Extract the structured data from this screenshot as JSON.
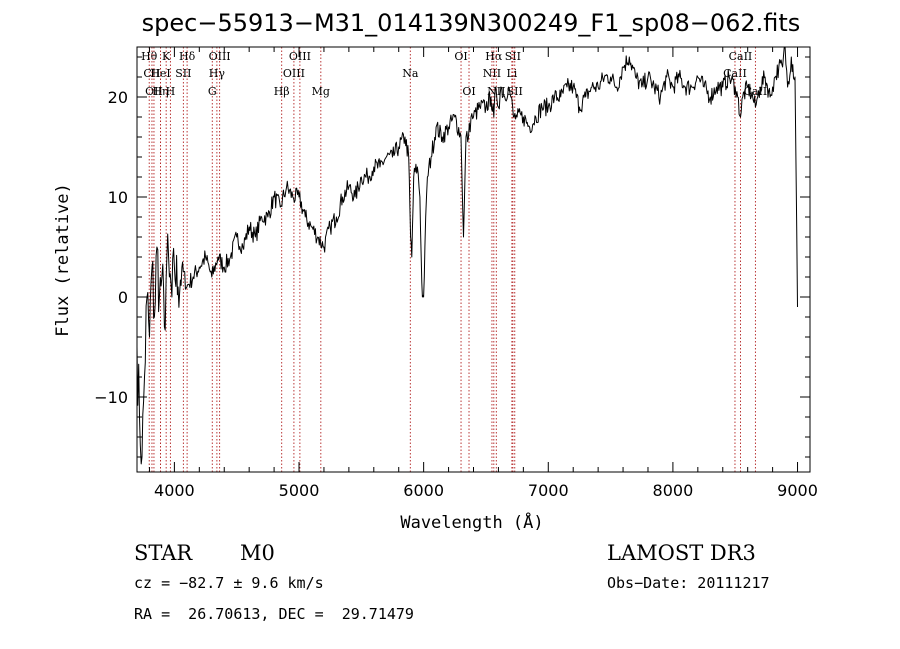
{
  "chart_data": {
    "type": "line",
    "title": "spec−55913−M31_014139N300249_F1_sp08−062.fits",
    "xlabel": "Wavelength (Å)",
    "ylabel": "Flux (relative)",
    "xlim": [
      3700,
      9100
    ],
    "ylim": [
      -17.5,
      25
    ],
    "xticks": [
      {
        "value": 4000,
        "label": "4000"
      },
      {
        "value": 5000,
        "label": "5000"
      },
      {
        "value": 6000,
        "label": "6000"
      },
      {
        "value": 7000,
        "label": "7000"
      },
      {
        "value": 8000,
        "label": "8000"
      },
      {
        "value": 9000,
        "label": "9000"
      }
    ],
    "yticks": [
      {
        "value": -10,
        "label": "−10"
      },
      {
        "value": 0,
        "label": "0"
      },
      {
        "value": 10,
        "label": "10"
      },
      {
        "value": 20,
        "label": "20"
      }
    ],
    "series": [
      {
        "name": "flux",
        "color": "#000000",
        "x": [
          3700,
          3720,
          3740,
          3760,
          3780,
          3800,
          3820,
          3840,
          3860,
          3880,
          3900,
          3920,
          3940,
          3960,
          3980,
          4000,
          4030,
          4060,
          4100,
          4150,
          4200,
          4250,
          4300,
          4350,
          4400,
          4450,
          4500,
          4550,
          4600,
          4650,
          4700,
          4750,
          4800,
          4850,
          4900,
          4950,
          5000,
          5050,
          5100,
          5150,
          5200,
          5250,
          5300,
          5350,
          5400,
          5450,
          5500,
          5550,
          5600,
          5650,
          5700,
          5750,
          5800,
          5850,
          5880,
          5895,
          5905,
          5920,
          5950,
          5970,
          5980,
          5990,
          6000,
          6010,
          6030,
          6060,
          6100,
          6150,
          6200,
          6250,
          6300,
          6320,
          6340,
          6360,
          6380,
          6400,
          6450,
          6500,
          6540,
          6563,
          6580,
          6600,
          6620,
          6650,
          6680,
          6700,
          6720,
          6750,
          6800,
          6850,
          6900,
          6950,
          7000,
          7050,
          7100,
          7150,
          7200,
          7250,
          7300,
          7350,
          7400,
          7450,
          7500,
          7550,
          7600,
          7650,
          7700,
          7750,
          7800,
          7850,
          7900,
          7950,
          8000,
          8050,
          8100,
          8150,
          8200,
          8250,
          8300,
          8350,
          8400,
          8450,
          8500,
          8520,
          8542,
          8560,
          8600,
          8640,
          8662,
          8680,
          8700,
          8740,
          8780,
          8800,
          8820,
          8850,
          8880,
          8900,
          8920,
          8950,
          8980,
          9000
        ],
        "y": [
          -5,
          -12,
          -16,
          -8,
          0,
          -4,
          3,
          -2,
          5,
          0,
          2,
          -3,
          4,
          2,
          0,
          3,
          1,
          3,
          1,
          2,
          3,
          4,
          2,
          4,
          3,
          4,
          6,
          5,
          7,
          6,
          8,
          8,
          10,
          9,
          11,
          10,
          10,
          8,
          7,
          6,
          5,
          7,
          8,
          10,
          11,
          10,
          12,
          12,
          13,
          13,
          14,
          14,
          15,
          16,
          14,
          6,
          4,
          12,
          13,
          10,
          4,
          0,
          0,
          5,
          12,
          14,
          17,
          16,
          17,
          18,
          16,
          6,
          16,
          16,
          18,
          18,
          19,
          19,
          20,
          18,
          21,
          19,
          21,
          20,
          21,
          20,
          18,
          18,
          18,
          17,
          18,
          19,
          19,
          20,
          20,
          21,
          21,
          19,
          20,
          21,
          21,
          22,
          22,
          21,
          23,
          24,
          22,
          21,
          22,
          21,
          20,
          22,
          21,
          22,
          21,
          21,
          22,
          21,
          20,
          21,
          21,
          22,
          21,
          20,
          18,
          20,
          21,
          20,
          19,
          20,
          21,
          22,
          20,
          21,
          22,
          23,
          23,
          25,
          21,
          24,
          22,
          -1
        ]
      }
    ],
    "line_markers": [
      {
        "wavelength": 3798,
        "label": "Hθ",
        "row": 0
      },
      {
        "wavelength": 3820,
        "label": "CII",
        "row": 1
      },
      {
        "wavelength": 3836,
        "label": "OII",
        "row": 2
      },
      {
        "wavelength": 3889,
        "label": "HeI",
        "row": 1
      },
      {
        "wavelength": 3889,
        "label": "Hη",
        "row": 2
      },
      {
        "wavelength": 3934,
        "label": "K",
        "row": 0
      },
      {
        "wavelength": 3968,
        "label": "H",
        "row": 2
      },
      {
        "wavelength": 4072,
        "label": "SII",
        "row": 1
      },
      {
        "wavelength": 4102,
        "label": "Hδ",
        "row": 0
      },
      {
        "wavelength": 4304,
        "label": "G",
        "row": 2
      },
      {
        "wavelength": 4341,
        "label": "Hγ",
        "row": 1
      },
      {
        "wavelength": 4363,
        "label": "OIII",
        "row": 0
      },
      {
        "wavelength": 4861,
        "label": "Hβ",
        "row": 2
      },
      {
        "wavelength": 4959,
        "label": "OIII",
        "row": 1
      },
      {
        "wavelength": 5007,
        "label": "OIII",
        "row": 0
      },
      {
        "wavelength": 5175,
        "label": "Mg",
        "row": 2
      },
      {
        "wavelength": 5893,
        "label": "Na",
        "row": 1
      },
      {
        "wavelength": 6300,
        "label": "OI",
        "row": 0
      },
      {
        "wavelength": 6364,
        "label": "OI",
        "row": 2
      },
      {
        "wavelength": 6548,
        "label": "NII",
        "row": 1
      },
      {
        "wavelength": 6563,
        "label": "Hα",
        "row": 0
      },
      {
        "wavelength": 6583,
        "label": "NII",
        "row": 2
      },
      {
        "wavelength": 6708,
        "label": "Li",
        "row": 1
      },
      {
        "wavelength": 6716,
        "label": "SII",
        "row": 0
      },
      {
        "wavelength": 6731,
        "label": "SII",
        "row": 2
      },
      {
        "wavelength": 8498,
        "label": "CaII",
        "row": 1
      },
      {
        "wavelength": 8542,
        "label": "CaII",
        "row": 0
      },
      {
        "wavelength": 8662,
        "label": "CaII",
        "row": 2
      }
    ]
  },
  "info": {
    "object_class": "STAR",
    "subclass": "M0",
    "survey": "LAMOST DR3",
    "redshift": "cz = −82.7 ± 9.6 km/s",
    "obs_date": "Obs−Date: 20111217",
    "coordinates": "RA =  26.70613, DEC =  29.71479"
  },
  "colors": {
    "spectrum": "#000000",
    "marker": "#b22222",
    "axes": "#000000",
    "background": "#ffffff"
  }
}
